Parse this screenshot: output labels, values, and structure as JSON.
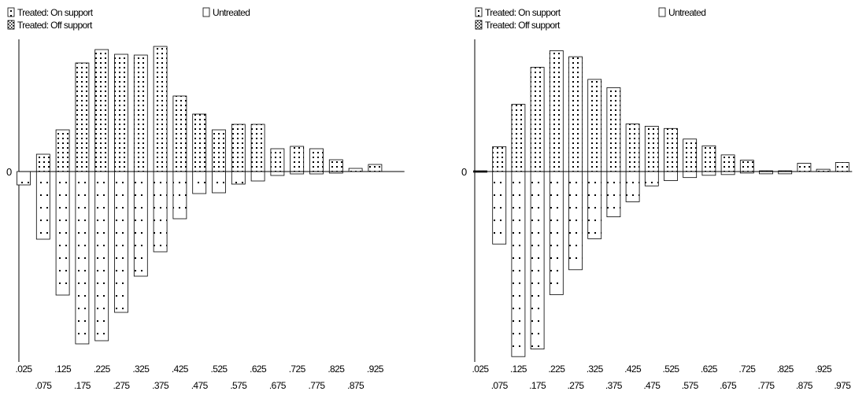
{
  "chart_data": [
    {
      "type": "bar",
      "subtype": "mirrored-histogram",
      "title": "",
      "xlabel": "",
      "ylabel": "",
      "zero_label": "0",
      "legend": {
        "position": "top",
        "entries": [
          {
            "label": "Treated: On support",
            "pattern": "dots"
          },
          {
            "label": "Treated: Off support",
            "pattern": "dense-dots"
          },
          {
            "label": "Untreated",
            "pattern": "empty"
          }
        ]
      },
      "bins": [
        ".025",
        ".075",
        ".125",
        ".175",
        ".225",
        ".275",
        ".325",
        ".375",
        ".425",
        ".475",
        ".525",
        ".575",
        ".625",
        ".675",
        ".725",
        ".775",
        ".825",
        ".875",
        ".925",
        ".975"
      ],
      "tick_labels_top": [
        ".025",
        ".125",
        ".225",
        ".325",
        ".425",
        ".525",
        ".625",
        ".725",
        ".825",
        ".925"
      ],
      "tick_labels_bottom": [
        ".075",
        ".175",
        ".275",
        ".375",
        ".475",
        ".575",
        ".675",
        ".775",
        ".875"
      ],
      "series": [
        {
          "name": "Treated: On support",
          "side": "above",
          "values": [
            0,
            22,
            53,
            138,
            155,
            149,
            148,
            159,
            96,
            73,
            53,
            60,
            60,
            29,
            32,
            29,
            15,
            4,
            9,
            0
          ]
        },
        {
          "name": "Untreated",
          "side": "below",
          "values": [
            17,
            86,
            157,
            219,
            215,
            179,
            133,
            102,
            60,
            28,
            27,
            16,
            12,
            5,
            3,
            3,
            2,
            0,
            0,
            0
          ]
        }
      ]
    },
    {
      "type": "bar",
      "subtype": "mirrored-histogram",
      "title": "",
      "xlabel": "",
      "ylabel": "",
      "zero_label": "0",
      "legend": {
        "position": "top",
        "entries": [
          {
            "label": "Treated: On support",
            "pattern": "dots"
          },
          {
            "label": "Treated: Off support",
            "pattern": "dense-dots"
          },
          {
            "label": "Untreated",
            "pattern": "sparse-dots"
          }
        ]
      },
      "bins": [
        ".025",
        ".075",
        ".125",
        ".175",
        ".225",
        ".275",
        ".325",
        ".375",
        ".425",
        ".475",
        ".525",
        ".575",
        ".625",
        ".675",
        ".725",
        ".775",
        ".825",
        ".875",
        ".925",
        ".975"
      ],
      "tick_labels_top": [
        ".025",
        ".125",
        ".225",
        ".325",
        ".425",
        ".525",
        ".625",
        ".725",
        ".825",
        ".925"
      ],
      "tick_labels_bottom": [
        ".075",
        ".175",
        ".275",
        ".375",
        ".475",
        ".575",
        ".675",
        ".775",
        ".875",
        ".975"
      ],
      "series": [
        {
          "name": "Treated: On support",
          "side": "above",
          "values": [
            1,
            33,
            89,
            138,
            160,
            152,
            122,
            111,
            63,
            60,
            57,
            43,
            34,
            22,
            15,
            1,
            1,
            11,
            3,
            12
          ]
        },
        {
          "name": "Untreated",
          "side": "below",
          "values": [
            1,
            96,
            245,
            235,
            163,
            130,
            89,
            60,
            40,
            19,
            12,
            8,
            5,
            4,
            2,
            3,
            3,
            0,
            0,
            0
          ]
        }
      ]
    }
  ]
}
